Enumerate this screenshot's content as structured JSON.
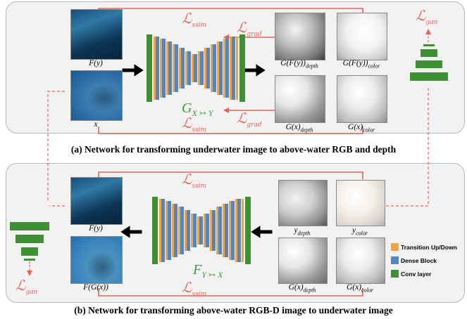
{
  "captions": {
    "a": "(a)  Network for transforming underwater image to above-water RGB and depth",
    "b": "(b)  Network for transforming above-water RGB-D image to underwater image"
  },
  "panel_a": {
    "labels": {
      "f_y": "F(y)",
      "x": "x",
      "g_f_y_depth_main": "G(F(y))",
      "g_f_y_depth_sub": "depth",
      "g_f_y_color_main": "G(F(y))",
      "g_f_y_color_sub": "color",
      "g_x_depth_main": "G(x)",
      "g_x_depth_sub": "depth",
      "g_x_color_main": "G(x)",
      "g_x_color_sub": "color"
    },
    "network_main": "G",
    "network_sub": "X ↣ Y",
    "loss_ssim_top": "ssim",
    "loss_ssim_bottom": "ssim",
    "loss_grad_top": "grad",
    "loss_grad_bottom": "grad",
    "loss_gan": "gan"
  },
  "panel_b": {
    "labels": {
      "f_y": "F(y)",
      "f_g_x": "F(G(x))",
      "y_depth_main": "y",
      "y_depth_sub": "depth",
      "y_color_main": "y",
      "y_color_sub": "color",
      "g_x_depth_main": "G(x)",
      "g_x_depth_sub": "depth",
      "g_x_color_main": "G(x)",
      "g_x_color_sub": "color"
    },
    "network_main": "F",
    "network_sub": "Y ↣ X",
    "loss_ssim_top": "ssim",
    "loss_ssim_bottom": "ssim",
    "loss_gan": "gan"
  },
  "loss_symbol": "ℒ",
  "legend": [
    {
      "label": "Transition Up/Down",
      "color": "#f4a340"
    },
    {
      "label": "Dense Block",
      "color": "#4f86c6"
    },
    {
      "label": "Conv layer",
      "color": "#3f8f34"
    }
  ],
  "colors": {
    "loss": "#e8625a",
    "conv": "#3f8f34",
    "dense": "#4f86c6",
    "transition": "#f4a340",
    "network_label": "#3d9a3d"
  }
}
